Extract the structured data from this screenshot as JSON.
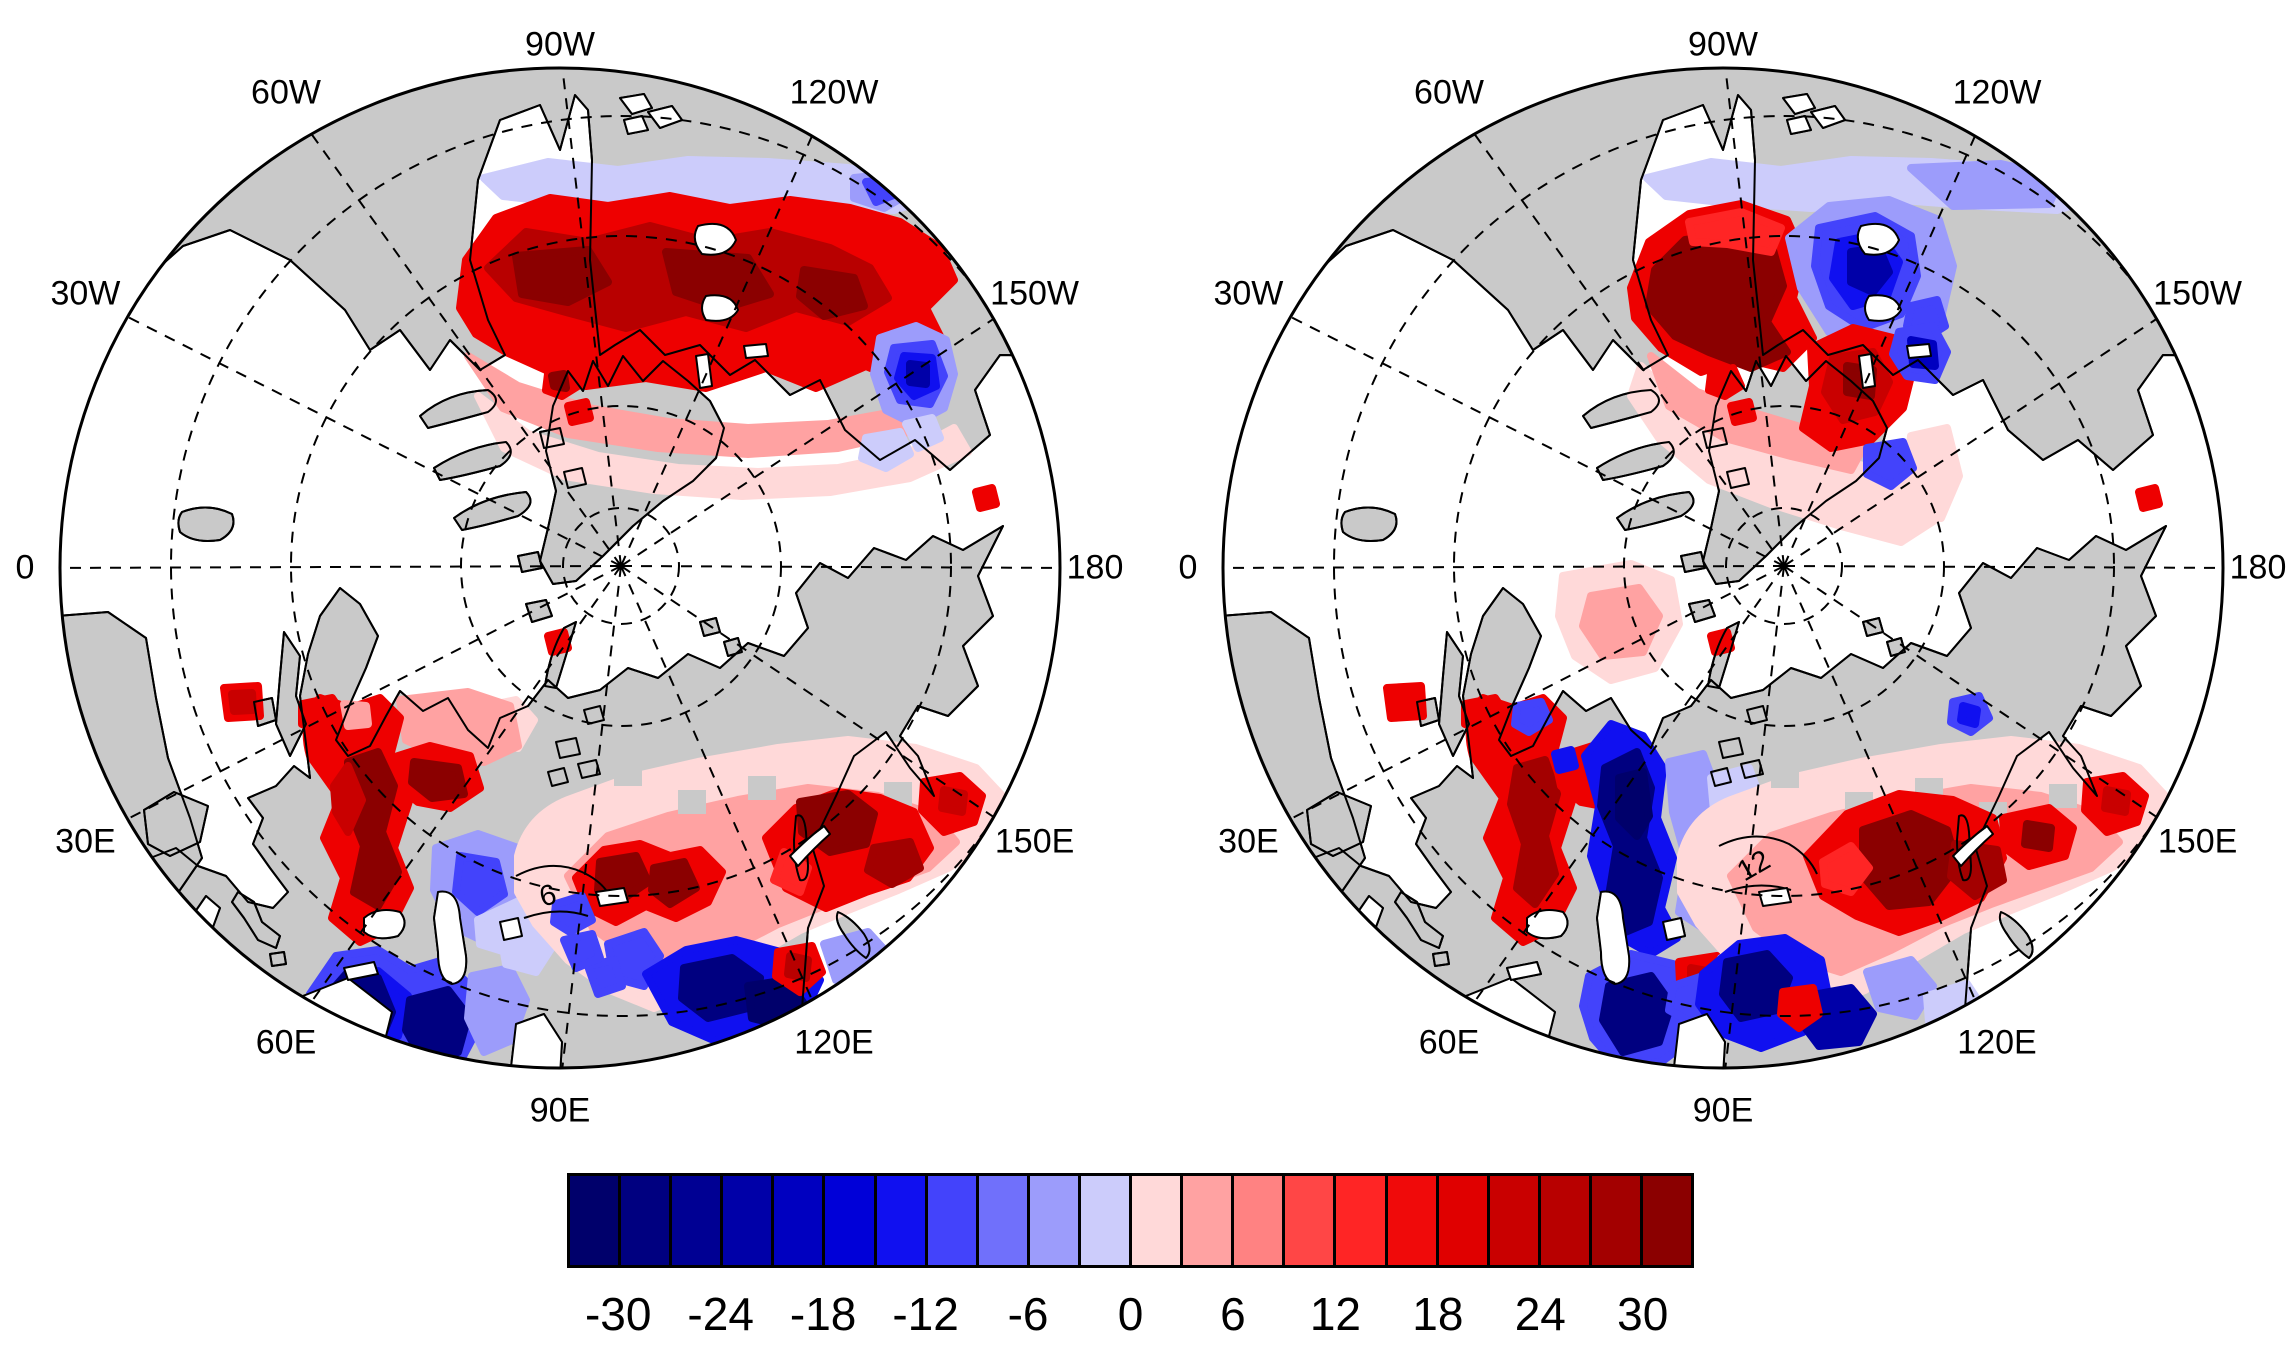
{
  "chart_data": {
    "type": "map",
    "projection": "north-polar-azimuthal",
    "description_visible_elements": "two circular polar maps with red/blue filled anomaly contours over land, dashed graticule, gray continents, shared horizontal colorbar",
    "panels": [
      {
        "id": "left",
        "contour_label": "6",
        "longitude_labels": [
          "90W",
          "120W",
          "150W",
          "180",
          "150E",
          "120E",
          "90E",
          "60E",
          "30E",
          "0",
          "30W",
          "60W"
        ],
        "longitude_label_angles_deg": [
          0,
          30,
          60,
          90,
          120,
          150,
          180,
          210,
          240,
          270,
          300,
          330
        ]
      },
      {
        "id": "right",
        "contour_label": "12",
        "longitude_labels": [
          "90W",
          "120W",
          "150W",
          "180",
          "150E",
          "120E",
          "90E",
          "60E",
          "30E",
          "0",
          "30W",
          "60W"
        ],
        "longitude_label_angles_deg": [
          0,
          30,
          60,
          90,
          120,
          150,
          180,
          210,
          240,
          270,
          300,
          330
        ]
      }
    ],
    "colorbar": {
      "orientation": "horizontal",
      "levels": [
        -33,
        -30,
        -27,
        -24,
        -21,
        -18,
        -15,
        -12,
        -9,
        -6,
        -3,
        0,
        3,
        6,
        9,
        12,
        15,
        18,
        21,
        24,
        27,
        30,
        33
      ],
      "tick_values": [
        -30,
        -24,
        -18,
        -12,
        -6,
        0,
        6,
        12,
        18,
        24,
        30
      ],
      "tick_labels": [
        "-30",
        "-24",
        "-18",
        "-12",
        "-6",
        "0",
        "6",
        "12",
        "18",
        "24",
        "30"
      ],
      "segment_colors": [
        "#00006b",
        "#000080",
        "#000093",
        "#0000a8",
        "#0000c0",
        "#0000d8",
        "#1010f0",
        "#4343fb",
        "#7070fb",
        "#9c9cfb",
        "#ccccfb",
        "#ffd9d9",
        "#ffa2a2",
        "#ff8282",
        "#ff4646",
        "#ff2525",
        "#f00a0a",
        "#e00000",
        "#c90000",
        "#b80000",
        "#a30000",
        "#8b0000"
      ]
    },
    "colors": {
      "land": "#c9c9c9",
      "ocean": "#ffffff",
      "coastline": "#000000",
      "graticule": "#000000",
      "background": "#ffffff"
    }
  }
}
